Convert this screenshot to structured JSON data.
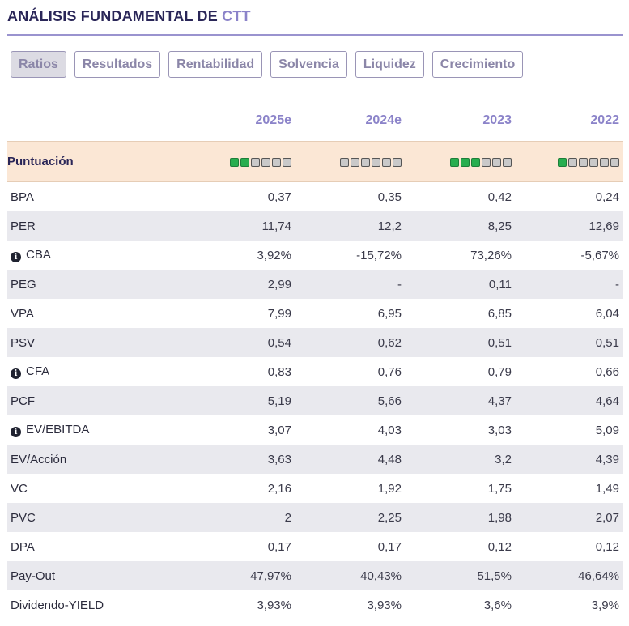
{
  "header": {
    "title": "ANÁLISIS FUNDAMENTAL DE",
    "ticker": "CTT"
  },
  "tabs": [
    "Ratios",
    "Resultados",
    "Rentabilidad",
    "Solvencia",
    "Liquidez",
    "Crecimiento"
  ],
  "active_tab": "Ratios",
  "columns": [
    "2025e",
    "2024e",
    "2023",
    "2022"
  ],
  "score": {
    "label": "Puntuación",
    "filled": [
      2,
      0,
      3,
      1
    ],
    "total": 6
  },
  "rows": [
    {
      "label": "BPA",
      "info": false,
      "values": [
        "0,37",
        "0,35",
        "0,42",
        "0,24"
      ]
    },
    {
      "label": "PER",
      "info": false,
      "values": [
        "11,74",
        "12,2",
        "8,25",
        "12,69"
      ]
    },
    {
      "label": "CBA",
      "info": true,
      "values": [
        "3,92%",
        "-15,72%",
        "73,26%",
        "-5,67%"
      ]
    },
    {
      "label": "PEG",
      "info": false,
      "values": [
        "2,99",
        "-",
        "0,11",
        "-"
      ]
    },
    {
      "label": "VPA",
      "info": false,
      "values": [
        "7,99",
        "6,95",
        "6,85",
        "6,04"
      ]
    },
    {
      "label": "PSV",
      "info": false,
      "values": [
        "0,54",
        "0,62",
        "0,51",
        "0,51"
      ]
    },
    {
      "label": "CFA",
      "info": true,
      "values": [
        "0,83",
        "0,76",
        "0,79",
        "0,66"
      ]
    },
    {
      "label": "PCF",
      "info": false,
      "values": [
        "5,19",
        "5,66",
        "4,37",
        "4,64"
      ]
    },
    {
      "label": "EV/EBITDA",
      "info": true,
      "values": [
        "3,07",
        "4,03",
        "3,03",
        "5,09"
      ]
    },
    {
      "label": "EV/Acción",
      "info": false,
      "values": [
        "3,63",
        "4,48",
        "3,2",
        "4,39"
      ]
    },
    {
      "label": "VC",
      "info": false,
      "values": [
        "2,16",
        "1,92",
        "1,75",
        "1,49"
      ]
    },
    {
      "label": "PVC",
      "info": false,
      "values": [
        "2",
        "2,25",
        "1,98",
        "2,07"
      ]
    },
    {
      "label": "DPA",
      "info": false,
      "values": [
        "0,17",
        "0,17",
        "0,12",
        "0,12"
      ]
    },
    {
      "label": "Pay-Out",
      "info": false,
      "values": [
        "47,97%",
        "40,43%",
        "51,5%",
        "46,64%"
      ]
    },
    {
      "label": "Dividendo-YIELD",
      "info": false,
      "values": [
        "3,93%",
        "3,93%",
        "3,6%",
        "3,9%"
      ]
    }
  ],
  "info_icon": "info-circle-icon",
  "colors": {
    "accent": "#8b83c9",
    "title": "#2a2658",
    "score_bg": "#fbe7d5",
    "alt_row": "#e9e9ee",
    "dot_on": "#27ae4f",
    "dot_off": "#c9c9c9"
  }
}
